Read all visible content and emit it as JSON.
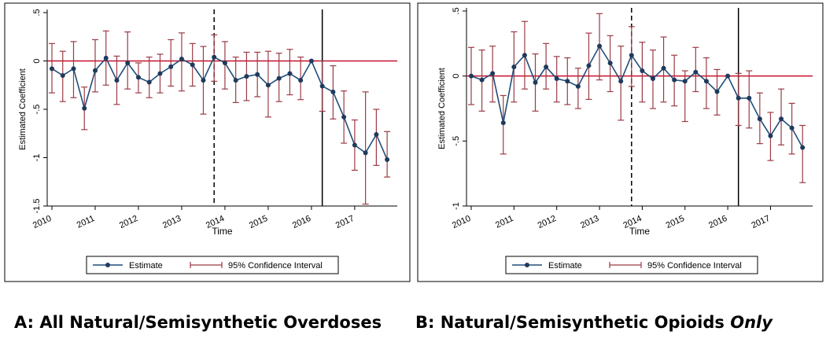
{
  "colors": {
    "estimate": "#1f4e79",
    "marker": "#1f3a5c",
    "ci": "#9b3b45",
    "zero_line": "#c8102e",
    "axis": "#000000",
    "frame": "#000000"
  },
  "legend": {
    "estimate_label": "Estimate",
    "ci_label": "95% Confidence Interval"
  },
  "captions": {
    "a": "A: All Natural/Semisynthetic Overdoses",
    "b_main": "B: Natural/Semisynthetic Opioids ",
    "b_italic": "Only"
  },
  "chart_data": [
    {
      "id": "a",
      "type": "line",
      "title": "A: All Natural/Semisynthetic Overdoses",
      "xlabel": "Time",
      "ylabel": "Estimated Coefficient",
      "xlim": [
        2010,
        2017.875
      ],
      "ylim": [
        -1.5,
        0.5
      ],
      "yticks": [
        0.5,
        0,
        -0.5,
        -1,
        -1.5
      ],
      "ytick_labels": [
        ".5",
        "0",
        "-.5",
        "-1",
        "-1.5"
      ],
      "xticks": [
        2010,
        2011,
        2012,
        2013,
        2014,
        2015,
        2016,
        2017
      ],
      "xtick_labels": [
        "2010",
        "2011",
        "2012",
        "2013",
        "2014",
        "2015",
        "2016",
        "2017"
      ],
      "reference_lines": {
        "zero": 0,
        "dashed_x": 2013.75,
        "solid_x": 2016.25
      },
      "series": [
        {
          "name": "Estimate",
          "x": [
            2010,
            2010.25,
            2010.5,
            2010.75,
            2011,
            2011.25,
            2011.5,
            2011.75,
            2012,
            2012.25,
            2012.5,
            2012.75,
            2013,
            2013.25,
            2013.5,
            2013.75,
            2014,
            2014.25,
            2014.5,
            2014.75,
            2015,
            2015.25,
            2015.5,
            2015.75,
            2016,
            2016.25,
            2016.5,
            2016.75,
            2017,
            2017.25,
            2017.5,
            2017.75
          ],
          "y": [
            -0.08,
            -0.15,
            -0.08,
            -0.49,
            -0.1,
            0.03,
            -0.2,
            -0.02,
            -0.17,
            -0.22,
            -0.13,
            -0.06,
            0.02,
            -0.04,
            -0.2,
            0.04,
            -0.02,
            -0.2,
            -0.16,
            -0.14,
            -0.25,
            -0.18,
            -0.13,
            -0.2,
            0.0,
            -0.26,
            -0.32,
            -0.58,
            -0.87,
            -0.95,
            -0.76,
            -1.02
          ],
          "ci_low": [
            -0.33,
            -0.42,
            -0.38,
            -0.71,
            -0.32,
            -0.25,
            -0.45,
            -0.29,
            -0.33,
            -0.38,
            -0.33,
            -0.26,
            -0.31,
            -0.26,
            -0.55,
            -0.21,
            -0.29,
            -0.43,
            -0.41,
            -0.37,
            -0.58,
            -0.42,
            -0.35,
            -0.4,
            0.0,
            -0.52,
            -0.6,
            -0.85,
            -1.13,
            -1.48,
            -1.08,
            -1.2
          ],
          "ci_high": [
            0.18,
            0.1,
            0.2,
            -0.27,
            0.22,
            0.31,
            0.05,
            0.3,
            -0.02,
            0.04,
            0.07,
            0.22,
            0.29,
            0.18,
            0.15,
            0.27,
            0.2,
            0.04,
            0.09,
            0.09,
            0.1,
            0.08,
            0.12,
            0.04,
            0.0,
            0.0,
            -0.05,
            -0.31,
            -0.61,
            -0.32,
            -0.5,
            -0.73
          ]
        }
      ]
    },
    {
      "id": "b",
      "type": "line",
      "title": "B: Natural/Semisynthetic Opioids Only",
      "xlabel": "Time",
      "ylabel": "Estimated Coefficient",
      "xlim": [
        2010,
        2017.875
      ],
      "ylim": [
        -1,
        0.5
      ],
      "yticks": [
        0.5,
        0,
        -0.5,
        -1
      ],
      "ytick_labels": [
        ".5",
        "0",
        "-.5",
        "-1"
      ],
      "xticks": [
        2010,
        2011,
        2012,
        2013,
        2014,
        2015,
        2016,
        2017
      ],
      "xtick_labels": [
        "2010",
        "2011",
        "2012",
        "2013",
        "2014",
        "2015",
        "2016",
        "2017"
      ],
      "reference_lines": {
        "zero": 0,
        "dashed_x": 2013.75,
        "solid_x": 2016.25
      },
      "series": [
        {
          "name": "Estimate",
          "x": [
            2010,
            2010.25,
            2010.5,
            2010.75,
            2011,
            2011.25,
            2011.5,
            2011.75,
            2012,
            2012.25,
            2012.5,
            2012.75,
            2013,
            2013.25,
            2013.5,
            2013.75,
            2014,
            2014.25,
            2014.5,
            2014.75,
            2015,
            2015.25,
            2015.5,
            2015.75,
            2016,
            2016.25,
            2016.5,
            2016.75,
            2017,
            2017.25,
            2017.5,
            2017.75
          ],
          "y": [
            0.0,
            -0.03,
            0.02,
            -0.36,
            0.07,
            0.16,
            -0.05,
            0.07,
            -0.02,
            -0.04,
            -0.08,
            0.08,
            0.23,
            0.1,
            -0.04,
            0.16,
            0.04,
            -0.02,
            0.06,
            -0.03,
            -0.04,
            0.03,
            -0.04,
            -0.12,
            0.0,
            -0.17,
            -0.17,
            -0.33,
            -0.46,
            -0.33,
            -0.4,
            -0.55
          ],
          "ci_low": [
            -0.22,
            -0.27,
            -0.2,
            -0.6,
            -0.2,
            -0.1,
            -0.27,
            -0.1,
            -0.2,
            -0.22,
            -0.25,
            -0.18,
            -0.03,
            -0.12,
            -0.34,
            -0.08,
            -0.2,
            -0.25,
            -0.2,
            -0.23,
            -0.35,
            -0.12,
            -0.25,
            -0.3,
            0.0,
            -0.38,
            -0.4,
            -0.52,
            -0.65,
            -0.53,
            -0.6,
            -0.82
          ],
          "ci_high": [
            0.22,
            0.2,
            0.23,
            -0.15,
            0.34,
            0.42,
            0.17,
            0.25,
            0.15,
            0.14,
            0.06,
            0.33,
            0.48,
            0.31,
            0.23,
            0.38,
            0.26,
            0.2,
            0.3,
            0.16,
            0.04,
            0.22,
            0.14,
            0.05,
            0.0,
            0.02,
            0.04,
            -0.13,
            -0.28,
            -0.1,
            -0.21,
            -0.38
          ]
        }
      ]
    }
  ]
}
